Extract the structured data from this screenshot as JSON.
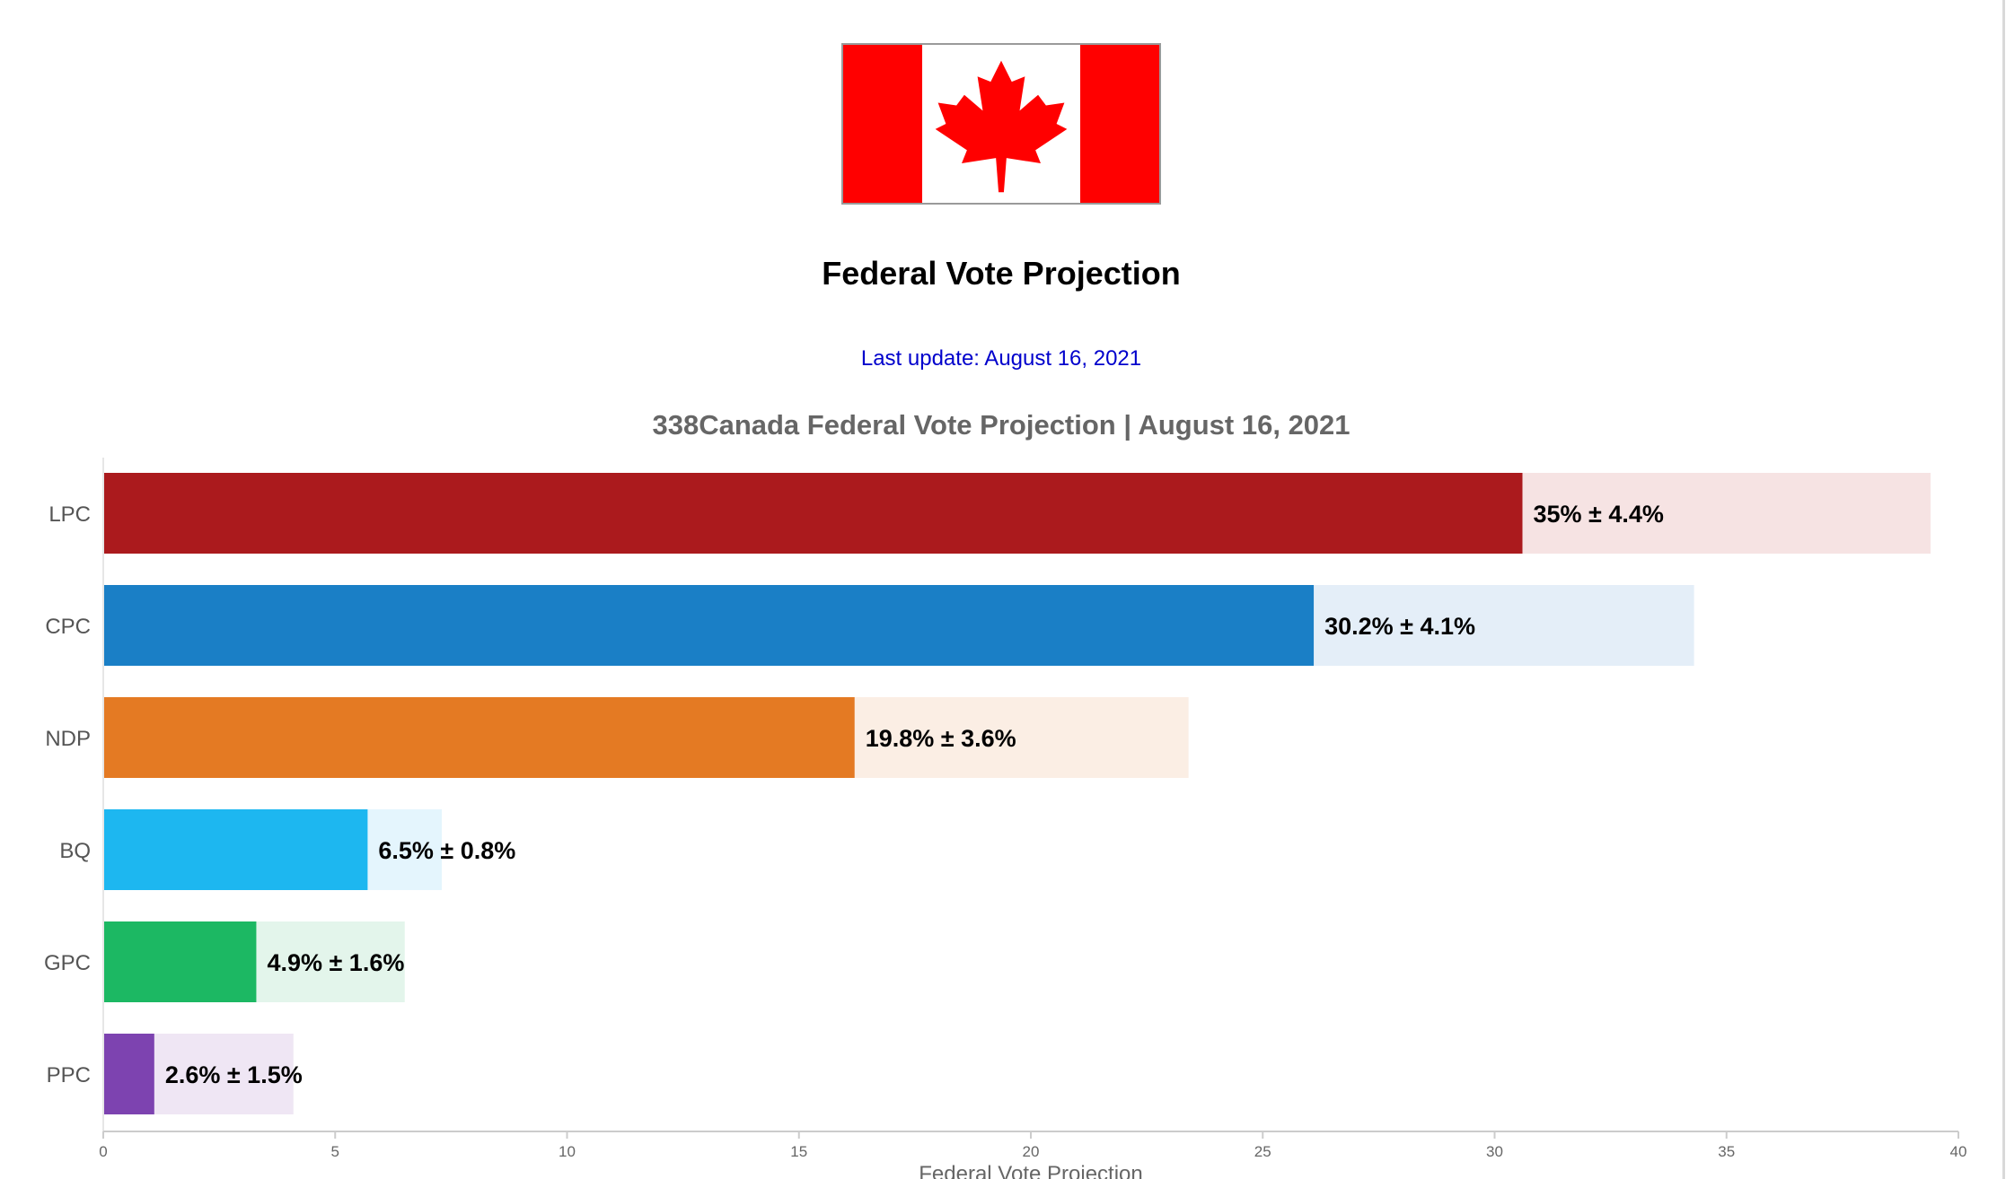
{
  "header": {
    "title": "Federal Vote Projection",
    "last_update": "Last update: August 16, 2021"
  },
  "flag": {
    "icon": "canada-flag-icon",
    "red": "#ff0000",
    "white": "#ffffff"
  },
  "colors": {
    "link": "#0000cc"
  },
  "chart_data": {
    "type": "bar",
    "orientation": "horizontal",
    "title": "338Canada Federal Vote Projection | August 16, 2021",
    "xlabel": "Federal Vote Projection",
    "xlim": [
      0,
      40
    ],
    "xticks": [
      0,
      5,
      10,
      15,
      20,
      25,
      30,
      35,
      40
    ],
    "grid": false,
    "categories": [
      "LPC",
      "CPC",
      "NDP",
      "BQ",
      "GPC",
      "PPC"
    ],
    "values": [
      35,
      30.2,
      19.8,
      6.5,
      4.9,
      2.6
    ],
    "margins": [
      4.4,
      4.1,
      3.6,
      0.8,
      1.6,
      1.5
    ],
    "labels": [
      "35% ± 4.4%",
      "30.2% ± 4.1%",
      "19.8% ± 3.6%",
      "6.5% ± 0.8%",
      "4.9% ± 1.6%",
      "2.6% ± 1.5%"
    ],
    "colors": [
      "#ab1a1d",
      "#1a7fc6",
      "#e47a23",
      "#1db7f0",
      "#1cb863",
      "#7d43b0"
    ],
    "range_colors": [
      "#f6e3e3",
      "#e4eef8",
      "#fbeee4",
      "#e4f5fd",
      "#e3f5eb",
      "#efe6f4"
    ]
  }
}
